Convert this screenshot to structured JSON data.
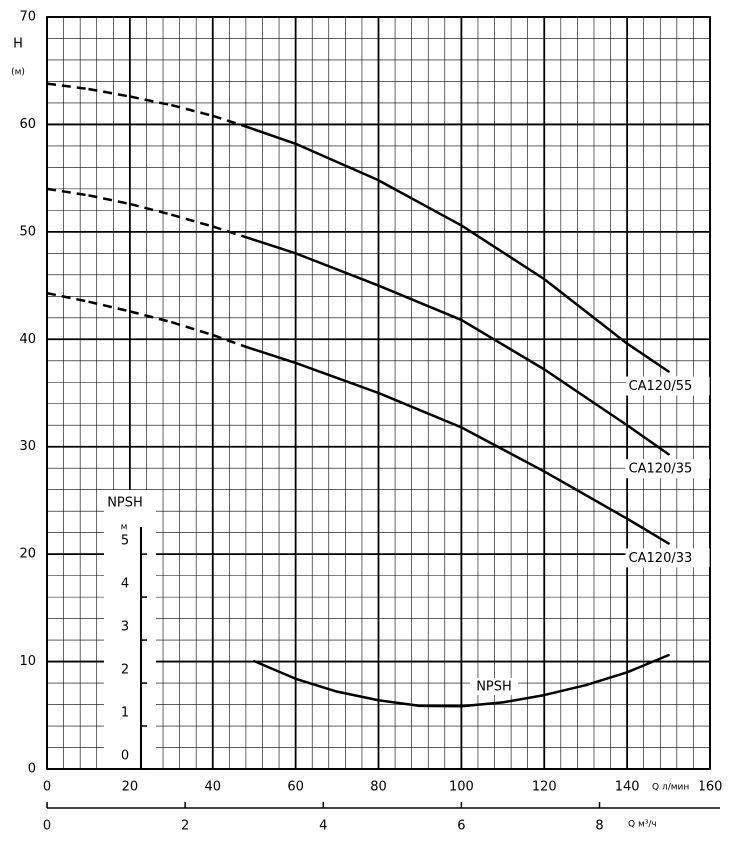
{
  "chart_data": {
    "type": "line",
    "ylabel": "H",
    "ylabel_unit": "(м)",
    "xlabel": "Q л/мин",
    "x2label": "Q м³/ч",
    "y2label": "NPSH",
    "y2label_unit": "м",
    "xlim": [
      0,
      160
    ],
    "xticks": [
      0,
      20,
      40,
      60,
      80,
      100,
      120,
      140,
      160
    ],
    "ylim": [
      0,
      70
    ],
    "yticks": [
      0,
      10,
      20,
      30,
      40,
      50,
      60,
      70
    ],
    "y2lim": [
      0,
      17.5
    ],
    "y2ticks": [
      0,
      1,
      2,
      3,
      4,
      5
    ],
    "x2lim": [
      0,
      9.6
    ],
    "x2ticks": [
      0,
      2,
      4,
      6,
      8
    ],
    "grid": true,
    "minor_grid": {
      "x": 4,
      "y": 2
    },
    "series": [
      {
        "name": "CA120/55",
        "color": "#000000",
        "x": [
          0,
          10,
          20,
          30,
          40,
          48,
          60,
          80,
          100,
          120,
          140,
          150
        ],
        "values": [
          63.8,
          63.3,
          62.6,
          61.8,
          60.8,
          59.8,
          58.2,
          54.8,
          50.6,
          45.6,
          39.6,
          37
        ],
        "line_styles": [
          "dashed",
          "dashed",
          "dashed",
          "dashed",
          "dashed",
          "solid",
          "solid",
          "solid",
          "solid",
          "solid",
          "solid"
        ]
      },
      {
        "name": "CA120/35",
        "color": "#000000",
        "x": [
          0,
          10,
          20,
          30,
          40,
          48,
          60,
          80,
          100,
          120,
          140,
          150
        ],
        "values": [
          54,
          53.4,
          52.6,
          51.6,
          50.5,
          49.5,
          48,
          45,
          41.8,
          37.2,
          32,
          29.3
        ],
        "line_styles": [
          "dashed",
          "dashed",
          "dashed",
          "dashed",
          "dashed",
          "solid",
          "solid",
          "solid",
          "solid",
          "solid",
          "solid"
        ]
      },
      {
        "name": "CA120/33",
        "color": "#000000",
        "x": [
          0,
          10,
          20,
          30,
          40,
          48,
          60,
          80,
          100,
          120,
          140,
          150
        ],
        "values": [
          44.3,
          43.5,
          42.6,
          41.6,
          40.4,
          39.3,
          37.8,
          35,
          31.8,
          27.7,
          23.3,
          21
        ],
        "line_styles": [
          "dashed",
          "dashed",
          "dashed",
          "dashed",
          "dashed",
          "solid",
          "solid",
          "solid",
          "solid",
          "solid",
          "solid"
        ]
      },
      {
        "name": "NPSH",
        "color": "#000000",
        "axis": "y2",
        "x": [
          50,
          60,
          70,
          80,
          90,
          100,
          110,
          120,
          130,
          140,
          150
        ],
        "values": [
          2.51,
          2.1,
          1.8,
          1.6,
          1.47,
          1.46,
          1.55,
          1.72,
          1.95,
          2.25,
          2.65
        ],
        "line_styles": [
          "solid",
          "solid",
          "solid",
          "solid",
          "solid",
          "solid",
          "solid",
          "solid",
          "solid",
          "solid"
        ]
      }
    ]
  }
}
